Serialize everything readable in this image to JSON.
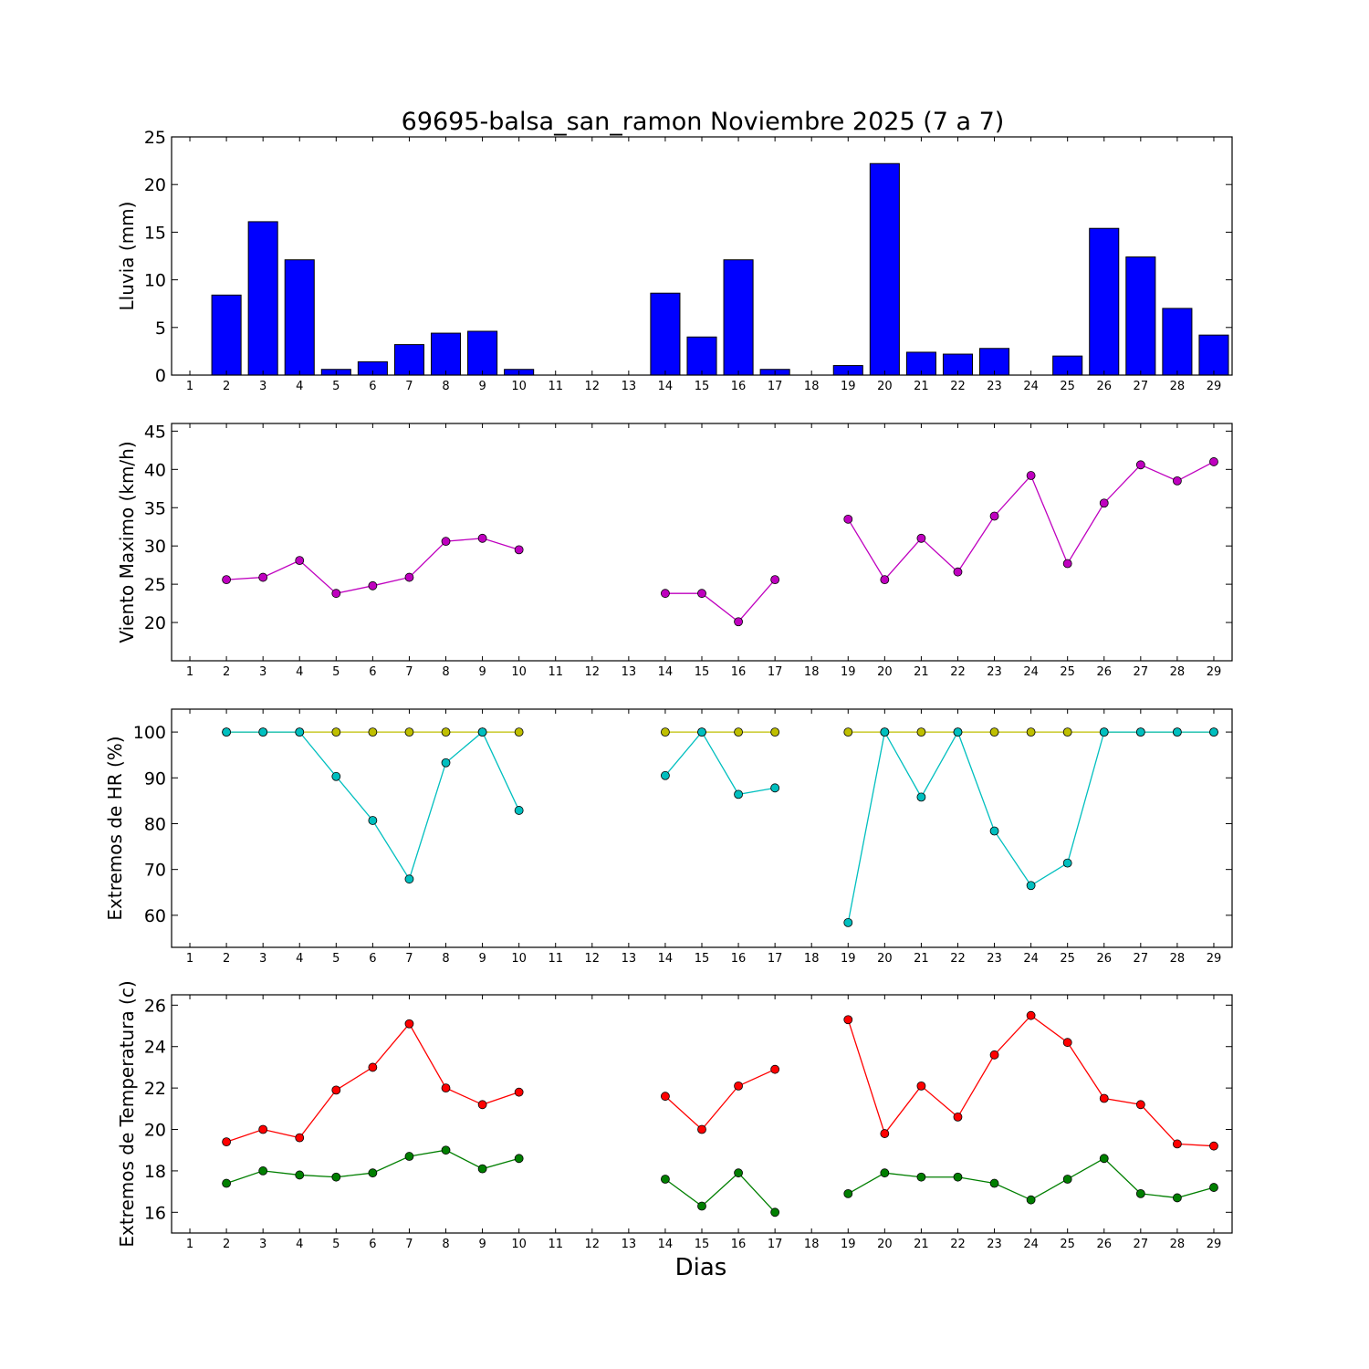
{
  "chart_data": {
    "type": "multi-panel",
    "title": "69695-balsa_san_ramon Noviembre 2025  (7 a 7)",
    "xlabel": "Dias",
    "days": [
      1,
      2,
      3,
      4,
      5,
      6,
      7,
      8,
      9,
      10,
      11,
      12,
      13,
      14,
      15,
      16,
      17,
      18,
      19,
      20,
      21,
      22,
      23,
      24,
      25,
      26,
      27,
      28,
      29
    ],
    "panels": [
      {
        "id": "lluvia",
        "type": "bar",
        "ylabel": "Lluvia (mm)",
        "ylim": [
          0,
          25
        ],
        "yticks": [
          0,
          5,
          10,
          15,
          20,
          25
        ],
        "series": [
          {
            "color": "#0000ff",
            "values": [
              0,
              8.4,
              16.1,
              12.1,
              0.6,
              1.4,
              3.2,
              4.4,
              4.6,
              0.6,
              0,
              0,
              0,
              8.6,
              4.0,
              12.1,
              0.6,
              0,
              1.0,
              22.2,
              2.4,
              2.2,
              2.8,
              0,
              2.0,
              15.4,
              12.4,
              7.0,
              4.2
            ]
          }
        ]
      },
      {
        "id": "viento",
        "type": "line",
        "ylabel": "Viento Maximo (km/h)",
        "ylim": [
          15,
          46
        ],
        "yticks": [
          20,
          25,
          30,
          35,
          40,
          45
        ],
        "series": [
          {
            "color": "#bf00bf",
            "values": [
              null,
              25.6,
              25.9,
              28.1,
              23.8,
              24.8,
              25.9,
              30.6,
              31.0,
              29.5,
              null,
              null,
              null,
              23.8,
              23.8,
              20.1,
              25.6,
              null,
              33.5,
              25.6,
              31.0,
              26.6,
              33.9,
              39.2,
              27.7,
              35.6,
              40.6,
              38.5,
              41.0
            ]
          }
        ]
      },
      {
        "id": "hr",
        "type": "line",
        "ylabel": "Extremos de HR (%)",
        "ylim": [
          53,
          105
        ],
        "yticks": [
          60,
          70,
          80,
          90,
          100
        ],
        "series": [
          {
            "color": "#bfbf00",
            "values": [
              null,
              100,
              100,
              100,
              100,
              100,
              100,
              100,
              100,
              100,
              null,
              null,
              null,
              100,
              100,
              100,
              100,
              null,
              100,
              100,
              100,
              100,
              100,
              100,
              100,
              100,
              100,
              100,
              100
            ]
          },
          {
            "color": "#00bfbf",
            "values": [
              null,
              100,
              100,
              100,
              90.3,
              80.7,
              67.9,
              93.3,
              100,
              82.9,
              null,
              null,
              null,
              90.5,
              100,
              86.4,
              87.8,
              null,
              58.4,
              100,
              85.8,
              100,
              78.4,
              66.5,
              71.4,
              100,
              100,
              100,
              100
            ]
          }
        ]
      },
      {
        "id": "temp",
        "type": "line",
        "ylabel": "Extremos de Temperatura (c)",
        "ylim": [
          15,
          26.5
        ],
        "yticks": [
          16,
          18,
          20,
          22,
          24,
          26
        ],
        "series": [
          {
            "color": "#ff0000",
            "values": [
              null,
              19.4,
              20.0,
              19.6,
              21.9,
              23.0,
              25.1,
              22.0,
              21.2,
              21.8,
              null,
              null,
              null,
              21.6,
              20.0,
              22.1,
              22.9,
              null,
              25.3,
              19.8,
              22.1,
              20.6,
              23.6,
              25.5,
              24.2,
              21.5,
              21.2,
              19.3,
              19.2
            ]
          },
          {
            "color": "#007f00",
            "values": [
              null,
              17.4,
              18.0,
              17.8,
              17.7,
              17.9,
              18.7,
              19.0,
              18.1,
              18.6,
              null,
              null,
              null,
              17.6,
              16.3,
              17.9,
              16.0,
              null,
              16.9,
              17.9,
              17.7,
              17.7,
              17.4,
              16.6,
              17.6,
              18.6,
              16.9,
              16.7,
              17.2
            ]
          }
        ]
      }
    ]
  }
}
